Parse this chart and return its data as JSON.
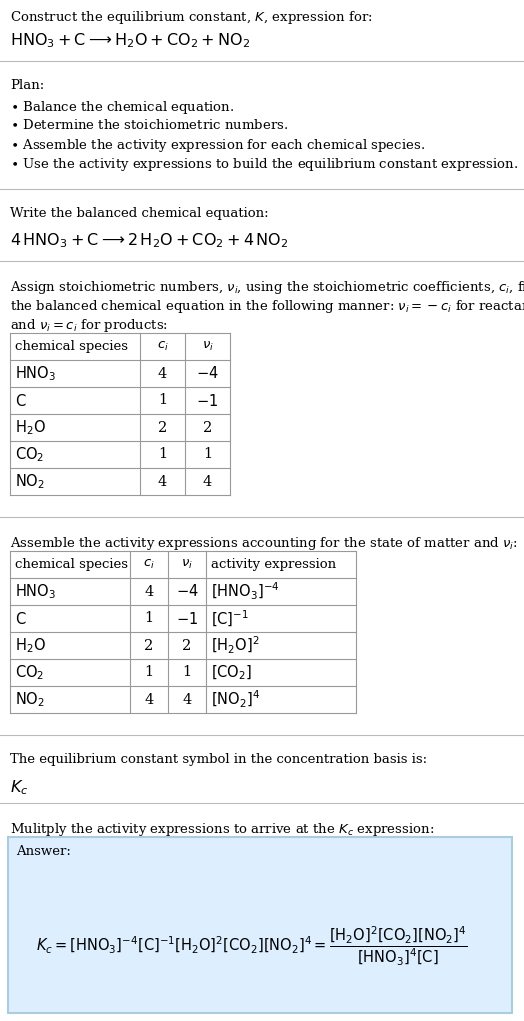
{
  "bg_color": "#ffffff",
  "table_line_color": "#999999",
  "answer_box_color": "#ddeeff",
  "answer_box_edge": "#aaccdd",
  "text_color": "#000000",
  "separator_color": "#bbbbbb",
  "font_size": 10.5,
  "small_font": 9.5,
  "table1_data": [
    [
      "$\\mathrm{HNO_3}$",
      "4",
      "$-4$"
    ],
    [
      "$\\mathrm{C}$",
      "1",
      "$-1$"
    ],
    [
      "$\\mathrm{H_2O}$",
      "2",
      "2"
    ],
    [
      "$\\mathrm{CO_2}$",
      "1",
      "1"
    ],
    [
      "$\\mathrm{NO_2}$",
      "4",
      "4"
    ]
  ],
  "table2_data": [
    [
      "$\\mathrm{HNO_3}$",
      "4",
      "$-4$",
      "$[\\mathrm{HNO_3}]^{-4}$"
    ],
    [
      "$\\mathrm{C}$",
      "1",
      "$-1$",
      "$[\\mathrm{C}]^{-1}$"
    ],
    [
      "$\\mathrm{H_2O}$",
      "2",
      "2",
      "$[\\mathrm{H_2O}]^{2}$"
    ],
    [
      "$\\mathrm{CO_2}$",
      "1",
      "1",
      "$[\\mathrm{CO_2}]$"
    ],
    [
      "$\\mathrm{NO_2}$",
      "4",
      "4",
      "$[\\mathrm{NO_2}]^{4}$"
    ]
  ]
}
